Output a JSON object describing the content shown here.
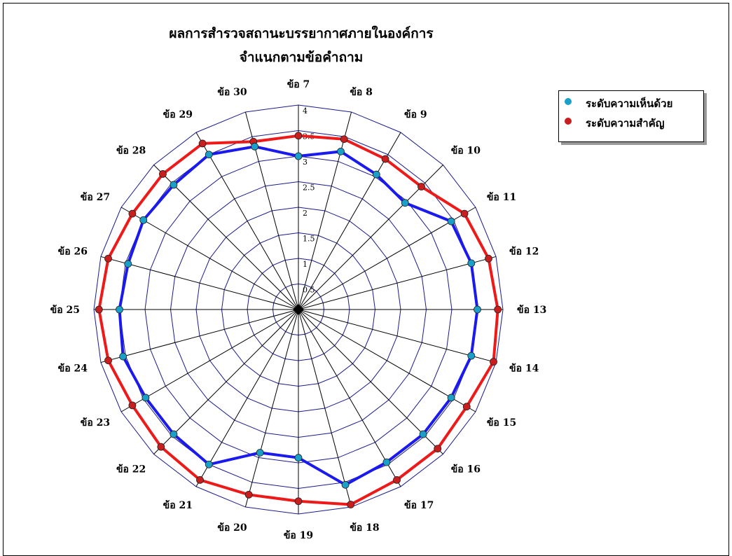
{
  "chart_title": {
    "line1": "ผลการสำรวจสถานะบรรยากาศภายในองค์การ",
    "line2": "จำแนกตามข้อคำถาม"
  },
  "legend": {
    "items": [
      {
        "label": "ระดับความเห็นด้วย",
        "color": "#1aa0c8"
      },
      {
        "label": "ระดับความสำคัญ",
        "color": "#c81e1e"
      }
    ]
  },
  "colors": {
    "agreement_line": "#1a1aee",
    "agreement_marker": "#1aa0c8",
    "importance_line": "#ee1a1a",
    "importance_marker": "#c81e1e",
    "grid": "#1a1a8c",
    "spoke": "#000000"
  },
  "chart_data": {
    "type": "radar",
    "title": "ผลการสำรวจสถานะบรรยากาศภายในองค์การ จำแนกตามข้อคำถาม",
    "categories": [
      "ข้อ 7",
      "ข้อ 8",
      "ข้อ 9",
      "ข้อ 10",
      "ข้อ 11",
      "ข้อ 12",
      "ข้อ 13",
      "ข้อ 14",
      "ข้อ 15",
      "ข้อ 16",
      "ข้อ 17",
      "ข้อ 18",
      "ข้อ 19",
      "ข้อ 20",
      "ข้อ 21",
      "ข้อ 22",
      "ข้อ 23",
      "ข้อ 24",
      "ข้อ 25",
      "ข้อ 26",
      "ข้อ 27",
      "ข้อ 28",
      "ข้อ 29",
      "ข้อ 30"
    ],
    "r_ticks": [
      "0.5",
      "1",
      "1.5",
      "2",
      "2.5",
      "3",
      "3.5",
      "4"
    ],
    "r_range": [
      0,
      4
    ],
    "series": [
      {
        "name": "ระดับความเห็นด้วย",
        "values": [
          3.0,
          3.2,
          3.05,
          2.95,
          3.45,
          3.5,
          3.5,
          3.5,
          3.45,
          3.45,
          3.45,
          3.55,
          2.9,
          2.9,
          3.5,
          3.45,
          3.45,
          3.55,
          3.5,
          3.45,
          3.5,
          3.45,
          3.5,
          3.3
        ]
      },
      {
        "name": "ระดับความสำคัญ",
        "values": [
          3.4,
          3.45,
          3.4,
          3.4,
          3.75,
          3.85,
          3.9,
          3.95,
          3.8,
          3.85,
          3.85,
          3.95,
          3.75,
          3.75,
          3.85,
          3.8,
          3.75,
          3.85,
          3.9,
          3.85,
          3.75,
          3.75,
          3.75,
          3.4
        ]
      }
    ],
    "grid": true,
    "legend_position": "top-right"
  }
}
